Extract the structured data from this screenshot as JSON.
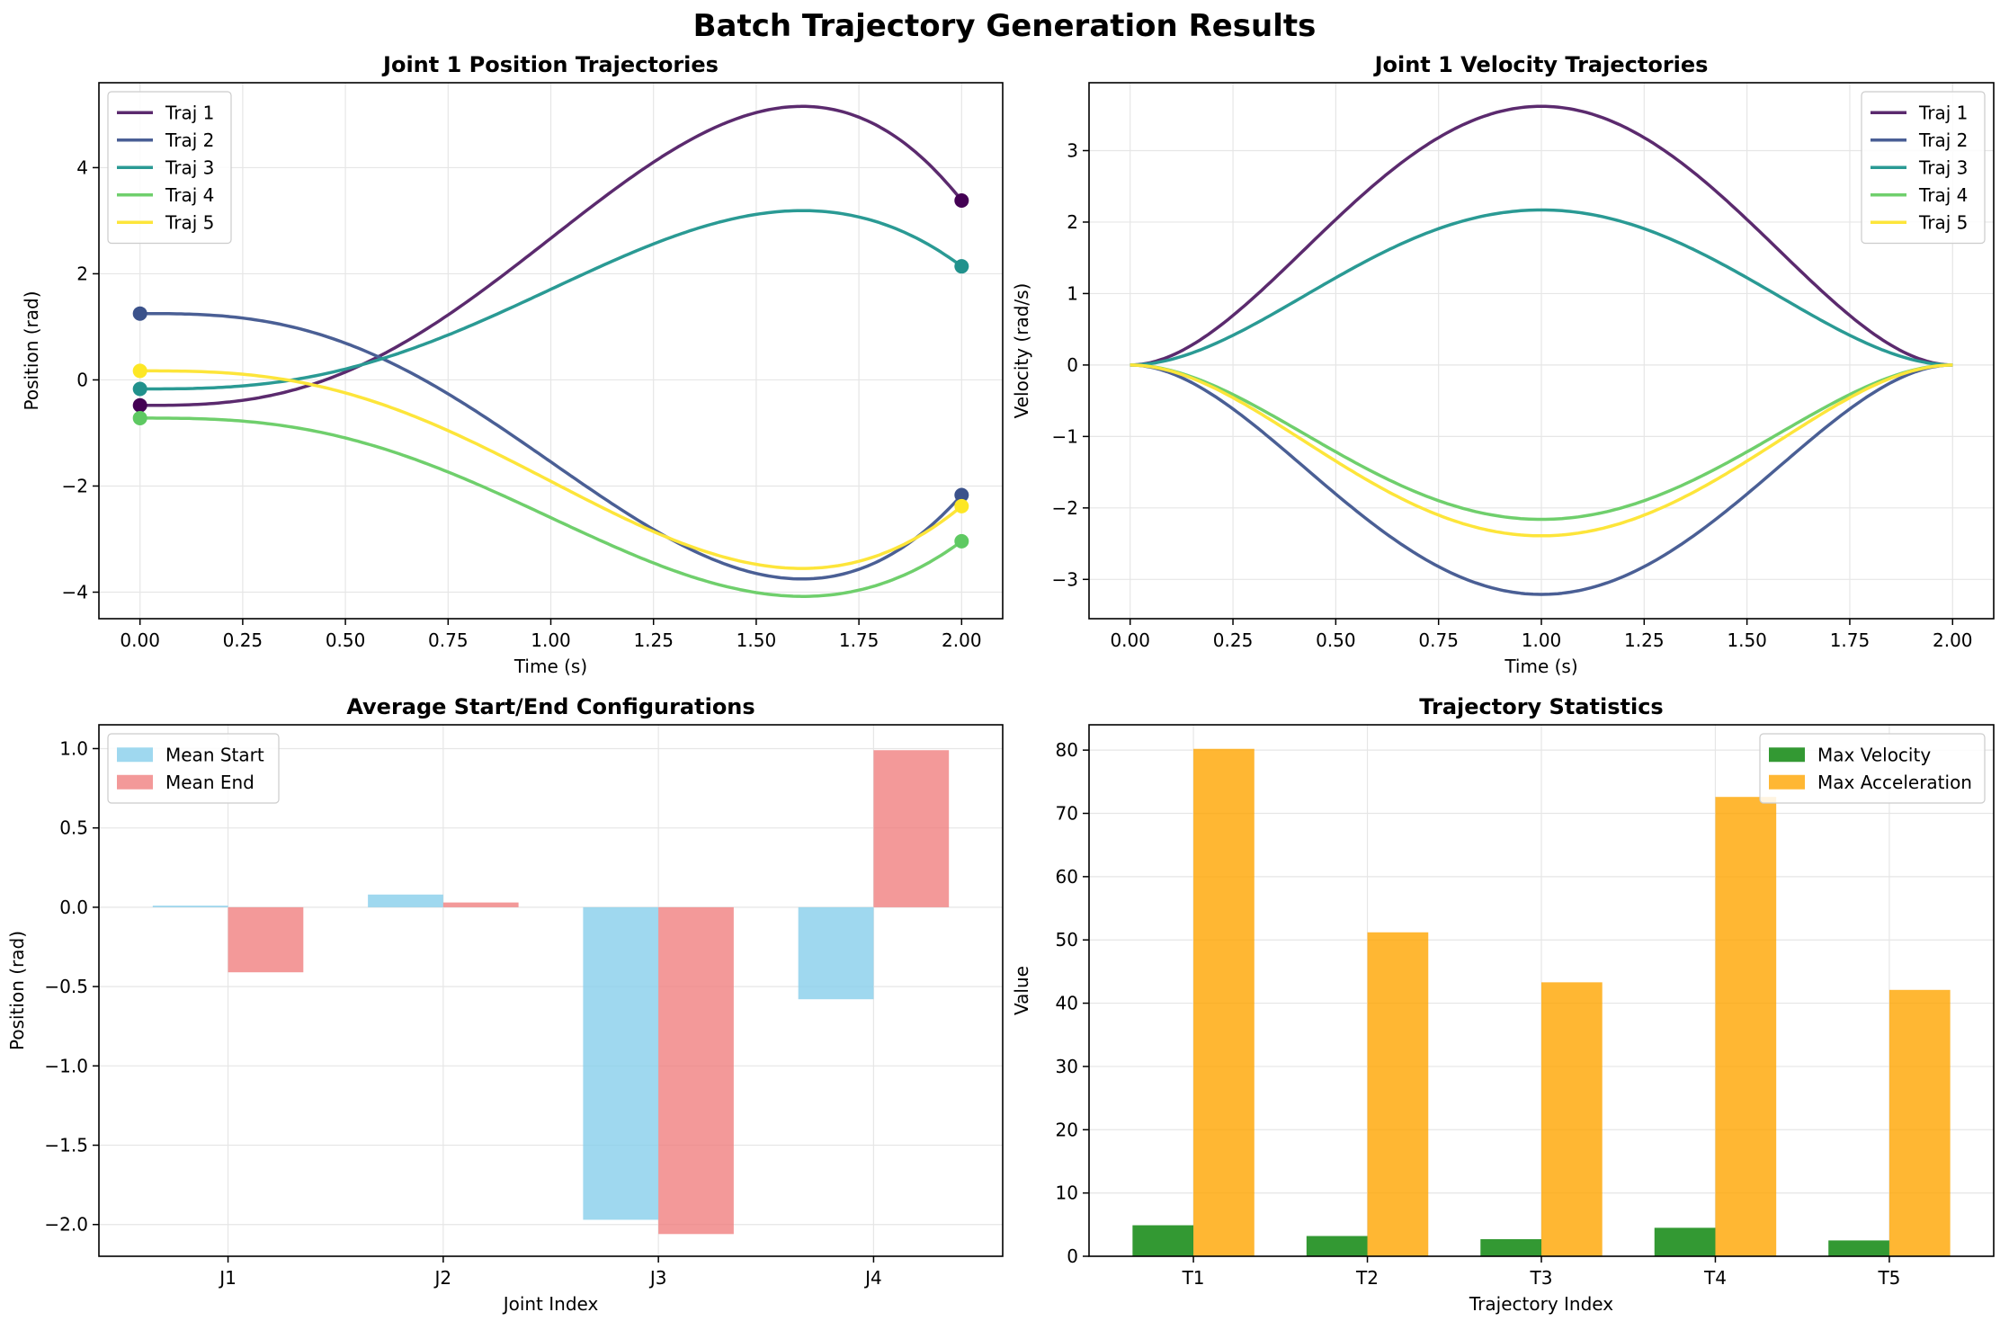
{
  "suptitle": "Batch Trajectory Generation Results",
  "colors": {
    "traj": [
      "#5b2a6e",
      "#4a5f95",
      "#2a9a94",
      "#6fcf6c",
      "#fde53a"
    ],
    "markers": [
      "#440154",
      "#3b528b",
      "#21918c",
      "#5ec962",
      "#fde725"
    ],
    "mean_start": "#87ceeb",
    "mean_end": "#f08080",
    "max_velocity": "#008000",
    "max_acceleration": "#ffa500",
    "grid": "#e6e6e6"
  },
  "chart_data": [
    {
      "type": "line",
      "title": "Joint 1 Position Trajectories",
      "xlabel": "Time (s)",
      "ylabel": "Position (rad)",
      "xlim": [
        -0.1,
        2.1
      ],
      "ylim": [
        -4.5,
        5.6
      ],
      "xticks": [
        0.0,
        0.25,
        0.5,
        0.75,
        1.0,
        1.25,
        1.5,
        1.75,
        2.0
      ],
      "xtick_labels": [
        "0.00",
        "0.25",
        "0.50",
        "0.75",
        "1.00",
        "1.25",
        "1.50",
        "1.75",
        "2.00"
      ],
      "yticks": [
        -4,
        -2,
        0,
        2,
        4
      ],
      "ytick_labels": [
        "−4",
        "−2",
        "0",
        "2",
        "4"
      ],
      "grid": true,
      "legend": "top-left",
      "markers": "start-and-end points",
      "series": [
        {
          "name": "Traj 1",
          "start": -0.48,
          "end": 3.38,
          "peak_time": 1.67,
          "peak": 5.12
        },
        {
          "name": "Traj 2",
          "start": 1.25,
          "end": -2.17,
          "peak_time": 1.67,
          "peak": -3.72
        },
        {
          "name": "Traj 3",
          "start": -0.17,
          "end": 2.14,
          "peak_time": 1.67,
          "peak": 3.17
        },
        {
          "name": "Traj 4",
          "start": -0.72,
          "end": -3.04,
          "peak_time": 1.67,
          "peak": -4.06
        },
        {
          "name": "Traj 5",
          "start": 0.17,
          "end": -2.38,
          "peak_time": 1.67,
          "peak": -3.53
        }
      ]
    },
    {
      "type": "line",
      "title": "Joint 1 Velocity Trajectories",
      "xlabel": "Time (s)",
      "ylabel": "Velocity (rad/s)",
      "xlim": [
        -0.1,
        2.1
      ],
      "ylim": [
        -3.55,
        3.95
      ],
      "xticks": [
        0.0,
        0.25,
        0.5,
        0.75,
        1.0,
        1.25,
        1.5,
        1.75,
        2.0
      ],
      "xtick_labels": [
        "0.00",
        "0.25",
        "0.50",
        "0.75",
        "1.00",
        "1.25",
        "1.50",
        "1.75",
        "2.00"
      ],
      "yticks": [
        -3,
        -2,
        -1,
        0,
        1,
        2,
        3
      ],
      "ytick_labels": [
        "−3",
        "−2",
        "−1",
        "0",
        "1",
        "2",
        "3"
      ],
      "grid": true,
      "legend": "top-right",
      "series": [
        {
          "name": "Traj 1",
          "peak_time": 1.0,
          "peak": 3.62
        },
        {
          "name": "Traj 2",
          "peak_time": 1.0,
          "peak": -3.21
        },
        {
          "name": "Traj 3",
          "peak_time": 1.0,
          "peak": 2.17
        },
        {
          "name": "Traj 4",
          "peak_time": 1.0,
          "peak": -2.16
        },
        {
          "name": "Traj 5",
          "peak_time": 1.0,
          "peak": -2.39
        }
      ]
    },
    {
      "type": "bar",
      "title": "Average Start/End Configurations",
      "xlabel": "Joint Index",
      "ylabel": "Position (rad)",
      "categories": [
        "J1",
        "J2",
        "J3",
        "J4"
      ],
      "ylim": [
        -2.2,
        1.15
      ],
      "yticks": [
        -2.0,
        -1.5,
        -1.0,
        -0.5,
        0.0,
        0.5,
        1.0
      ],
      "ytick_labels": [
        "−2.0",
        "−1.5",
        "−1.0",
        "−0.5",
        "0.0",
        "0.5",
        "1.0"
      ],
      "grid": true,
      "legend": "top-left",
      "series": [
        {
          "name": "Mean Start",
          "values": [
            0.01,
            0.08,
            -1.97,
            -0.58
          ]
        },
        {
          "name": "Mean End",
          "values": [
            -0.41,
            0.03,
            -2.06,
            0.99
          ]
        }
      ]
    },
    {
      "type": "bar",
      "title": "Trajectory Statistics",
      "xlabel": "Trajectory Index",
      "ylabel": "Value",
      "categories": [
        "T1",
        "T2",
        "T3",
        "T4",
        "T5"
      ],
      "ylim": [
        0,
        84
      ],
      "yticks": [
        0,
        10,
        20,
        30,
        40,
        50,
        60,
        70,
        80
      ],
      "ytick_labels": [
        "0",
        "10",
        "20",
        "30",
        "40",
        "50",
        "60",
        "70",
        "80"
      ],
      "grid": true,
      "legend": "top-right",
      "series": [
        {
          "name": "Max Velocity",
          "values": [
            4.9,
            3.2,
            2.7,
            4.5,
            2.5
          ]
        },
        {
          "name": "Max Acceleration",
          "values": [
            80.2,
            51.2,
            43.3,
            72.6,
            42.1
          ]
        }
      ]
    }
  ]
}
